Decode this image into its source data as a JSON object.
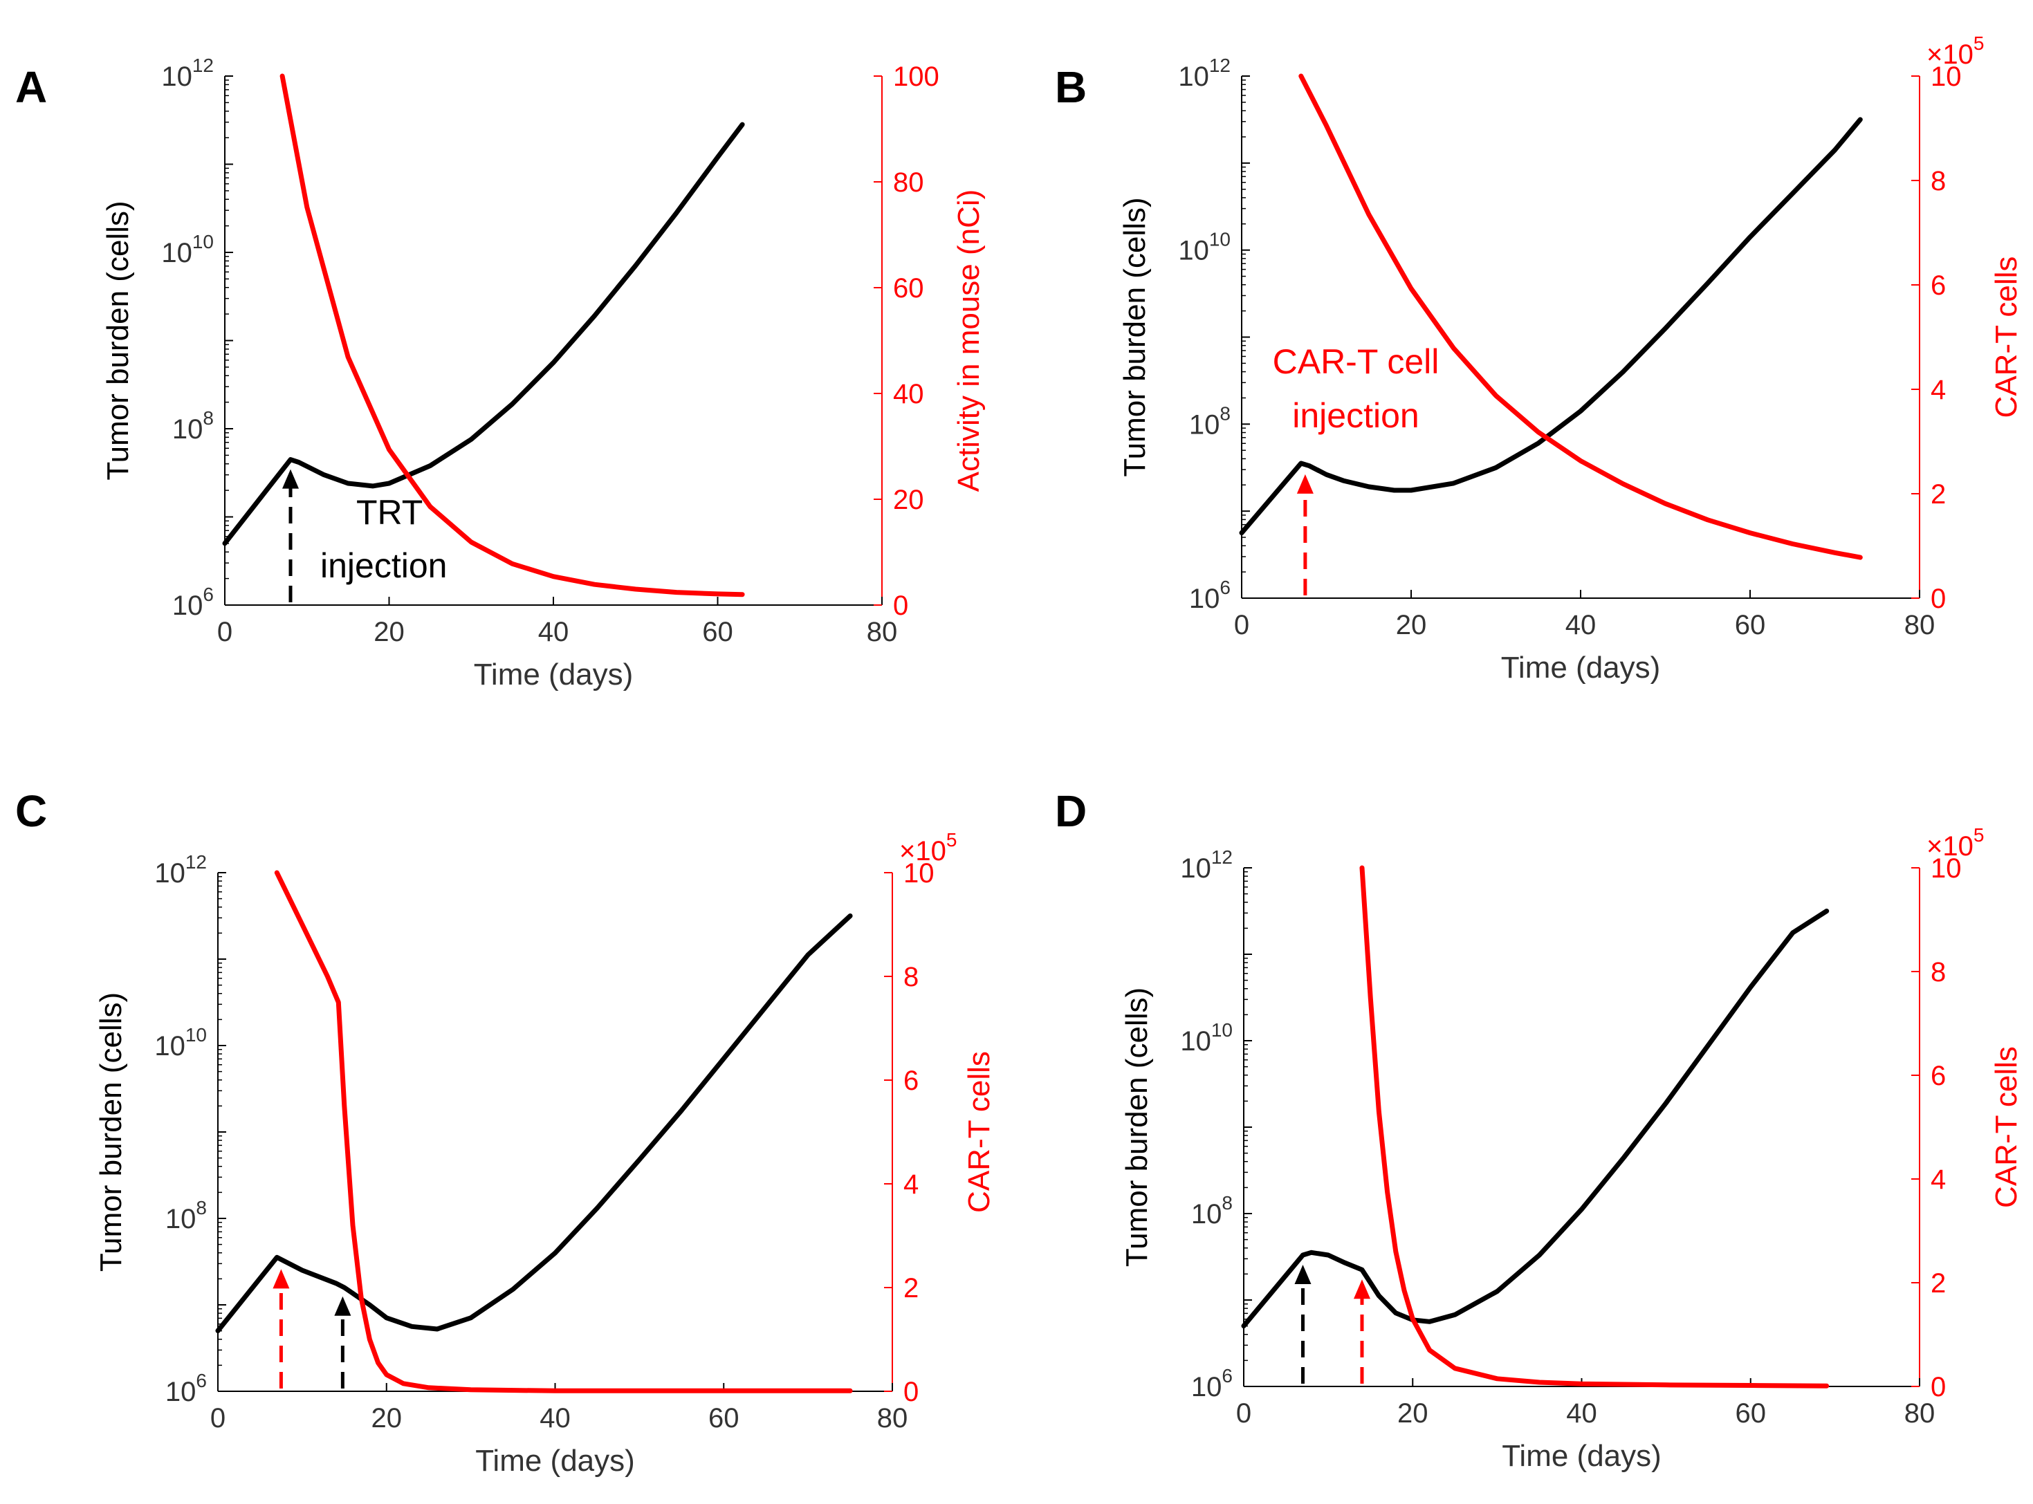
{
  "chart_data": [
    {
      "panel": "A",
      "type": "line",
      "xlabel": "Time (days)",
      "ylabel_left": "Tumor burden (cells)",
      "ylabel_right": "Activity in mouse (nCi)",
      "xlim": [
        0,
        80
      ],
      "xticks": [
        "0",
        "20",
        "40",
        "60",
        "80"
      ],
      "ylim_left_log10": [
        6,
        12
      ],
      "yticks_left": [
        {
          "base": "10",
          "exp": "6"
        },
        {
          "base": "10",
          "exp": "8"
        },
        {
          "base": "10",
          "exp": "10"
        },
        {
          "base": "10",
          "exp": "12"
        }
      ],
      "ylim_right": [
        0,
        100
      ],
      "yticks_right": [
        "0",
        "20",
        "40",
        "60",
        "80",
        "100"
      ],
      "right_multiplier": null,
      "series": [
        {
          "name": "Tumor burden",
          "axis": "left",
          "color": "#000000",
          "x": [
            0,
            8,
            9,
            12,
            15,
            18,
            20,
            25,
            30,
            35,
            40,
            45,
            50,
            55,
            60,
            63
          ],
          "log10y": [
            6.7,
            7.65,
            7.62,
            7.48,
            7.38,
            7.35,
            7.38,
            7.58,
            7.88,
            8.28,
            8.75,
            9.28,
            9.85,
            10.45,
            11.08,
            11.45
          ]
        },
        {
          "name": "Activity in mouse",
          "axis": "right",
          "color": "#ff0000",
          "x": [
            7,
            10,
            15,
            20,
            25,
            30,
            35,
            40,
            45,
            50,
            55,
            60,
            63
          ],
          "y": [
            100,
            75.2,
            46.9,
            29.4,
            18.6,
            11.9,
            7.8,
            5.4,
            3.9,
            3.0,
            2.4,
            2.1,
            2.0
          ]
        }
      ],
      "arrows": [
        {
          "x": 8,
          "color": "#000000"
        }
      ],
      "annotation": {
        "lines": [
          "TRT",
          "injection"
        ],
        "color": "#000000"
      }
    },
    {
      "panel": "B",
      "type": "line",
      "xlabel": "Time (days)",
      "ylabel_left": "Tumor burden (cells)",
      "ylabel_right": "CAR-T cells",
      "xlim": [
        0,
        80
      ],
      "xticks": [
        "0",
        "20",
        "40",
        "60",
        "80"
      ],
      "ylim_left_log10": [
        6,
        12
      ],
      "yticks_left": [
        {
          "base": "10",
          "exp": "6"
        },
        {
          "base": "10",
          "exp": "8"
        },
        {
          "base": "10",
          "exp": "10"
        },
        {
          "base": "10",
          "exp": "12"
        }
      ],
      "ylim_right": [
        0,
        10
      ],
      "yticks_right": [
        "0",
        "2",
        "4",
        "6",
        "8",
        "10"
      ],
      "right_multiplier": {
        "text": "×10",
        "exp": "5"
      },
      "series": [
        {
          "name": "Tumor burden",
          "axis": "left",
          "color": "#000000",
          "x": [
            0,
            7,
            8,
            10,
            12,
            15,
            18,
            20,
            25,
            30,
            35,
            40,
            45,
            50,
            55,
            60,
            65,
            70,
            73
          ],
          "log10y": [
            6.75,
            7.55,
            7.52,
            7.42,
            7.35,
            7.28,
            7.24,
            7.24,
            7.32,
            7.5,
            7.78,
            8.15,
            8.6,
            9.1,
            9.62,
            10.15,
            10.65,
            11.15,
            11.5
          ]
        },
        {
          "name": "CAR-T cells",
          "axis": "right",
          "color": "#ff0000",
          "x": [
            7,
            10,
            15,
            20,
            25,
            30,
            35,
            40,
            45,
            50,
            55,
            60,
            65,
            70,
            73
          ],
          "y": [
            10.0,
            9.05,
            7.35,
            5.93,
            4.79,
            3.88,
            3.18,
            2.63,
            2.19,
            1.81,
            1.5,
            1.25,
            1.04,
            0.87,
            0.78
          ]
        }
      ],
      "arrows": [
        {
          "x": 7.5,
          "color": "#ff0000"
        }
      ],
      "annotation": {
        "lines": [
          "CAR-T cell",
          "injection"
        ],
        "color": "#ff0000"
      }
    },
    {
      "panel": "C",
      "type": "line",
      "xlabel": "Time (days)",
      "ylabel_left": "Tumor burden (cells)",
      "ylabel_right": "CAR-T cells",
      "xlim": [
        0,
        80
      ],
      "xticks": [
        "0",
        "20",
        "40",
        "60",
        "80"
      ],
      "ylim_left_log10": [
        6,
        12
      ],
      "yticks_left": [
        {
          "base": "10",
          "exp": "6"
        },
        {
          "base": "10",
          "exp": "8"
        },
        {
          "base": "10",
          "exp": "10"
        },
        {
          "base": "10",
          "exp": "12"
        }
      ],
      "ylim_right": [
        0,
        10
      ],
      "yticks_right": [
        "0",
        "2",
        "4",
        "6",
        "8",
        "10"
      ],
      "right_multiplier": {
        "text": "×10",
        "exp": "5"
      },
      "series": [
        {
          "name": "Tumor burden",
          "axis": "left",
          "color": "#000000",
          "x": [
            0,
            7,
            10,
            14,
            15,
            18,
            20,
            23,
            26,
            30,
            35,
            40,
            45,
            50,
            55,
            60,
            65,
            70,
            75
          ],
          "log10y": [
            6.7,
            7.55,
            7.4,
            7.25,
            7.2,
            7.0,
            6.85,
            6.75,
            6.72,
            6.85,
            7.18,
            7.6,
            8.12,
            8.68,
            9.25,
            9.85,
            10.45,
            11.05,
            11.5
          ]
        },
        {
          "name": "CAR-T cells",
          "axis": "right",
          "color": "#ff0000",
          "x": [
            7,
            10,
            13,
            14.3,
            15,
            16,
            17,
            18,
            19,
            20,
            22,
            25,
            30,
            40,
            50,
            60,
            70,
            75
          ],
          "y": [
            10.0,
            9.0,
            8.0,
            7.5,
            5.5,
            3.2,
            1.8,
            1.0,
            0.55,
            0.32,
            0.15,
            0.07,
            0.03,
            0.01,
            0.01,
            0.01,
            0.01,
            0.01
          ]
        }
      ],
      "arrows": [
        {
          "x": 7.5,
          "color": "#ff0000"
        },
        {
          "x": 14.8,
          "color": "#000000"
        }
      ],
      "annotation": null
    },
    {
      "panel": "D",
      "type": "line",
      "xlabel": "Time (days)",
      "ylabel_left": "Tumor burden (cells)",
      "ylabel_right": "CAR-T cells",
      "xlim": [
        0,
        80
      ],
      "xticks": [
        "0",
        "20",
        "40",
        "60",
        "80"
      ],
      "ylim_left_log10": [
        6,
        12
      ],
      "yticks_left": [
        {
          "base": "10",
          "exp": "6"
        },
        {
          "base": "10",
          "exp": "8"
        },
        {
          "base": "10",
          "exp": "10"
        },
        {
          "base": "10",
          "exp": "12"
        }
      ],
      "ylim_right": [
        0,
        10
      ],
      "yticks_right": [
        "0",
        "2",
        "4",
        "6",
        "8",
        "10"
      ],
      "right_multiplier": {
        "text": "×10",
        "exp": "5"
      },
      "series": [
        {
          "name": "Tumor burden",
          "axis": "left",
          "color": "#000000",
          "x": [
            0,
            7,
            8,
            10,
            12,
            14,
            16,
            18,
            20,
            22,
            25,
            30,
            35,
            40,
            45,
            50,
            55,
            60,
            65,
            69
          ],
          "log10y": [
            6.7,
            7.52,
            7.55,
            7.52,
            7.43,
            7.35,
            7.05,
            6.85,
            6.77,
            6.75,
            6.83,
            7.1,
            7.52,
            8.05,
            8.65,
            9.28,
            9.95,
            10.62,
            11.25,
            11.5
          ]
        },
        {
          "name": "CAR-T cells",
          "axis": "right",
          "color": "#ff0000",
          "x": [
            14,
            15,
            16,
            17,
            18,
            19,
            20,
            22,
            25,
            30,
            35,
            40,
            50,
            60,
            69
          ],
          "y": [
            10.0,
            7.5,
            5.3,
            3.75,
            2.6,
            1.85,
            1.3,
            0.7,
            0.35,
            0.15,
            0.08,
            0.05,
            0.03,
            0.02,
            0.01
          ]
        }
      ],
      "arrows": [
        {
          "x": 7,
          "color": "#000000"
        },
        {
          "x": 14,
          "color": "#ff0000"
        }
      ],
      "annotation": null
    }
  ]
}
